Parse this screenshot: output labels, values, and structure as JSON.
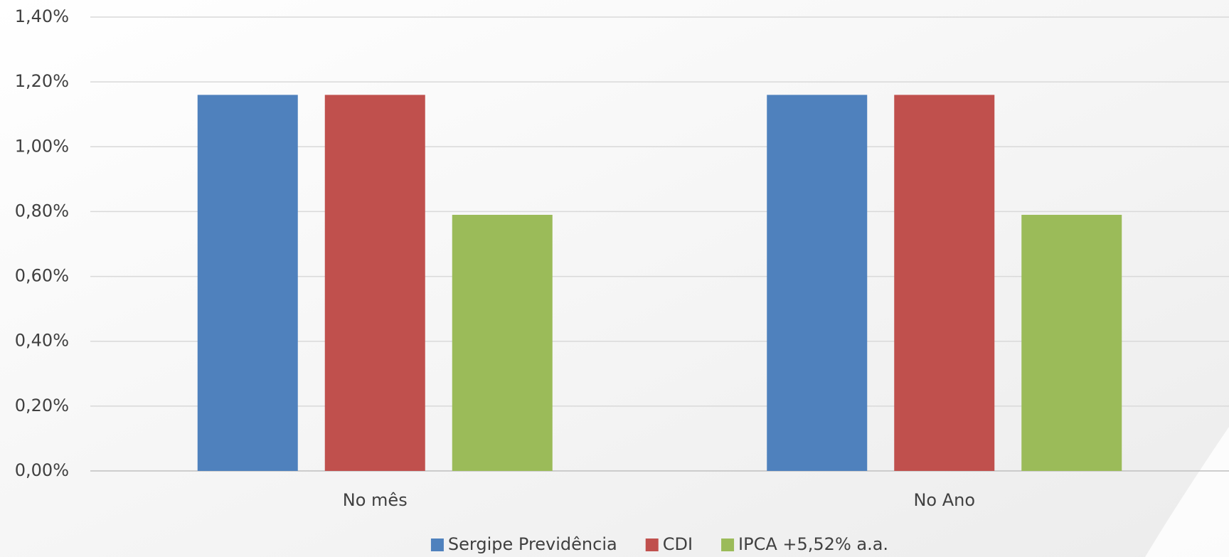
{
  "chart_data": {
    "type": "bar",
    "categories": [
      "No mês",
      "No Ano"
    ],
    "series": [
      {
        "name": "Sergipe Previdência",
        "color": "#4f81bd",
        "values": [
          1.16,
          1.16
        ]
      },
      {
        "name": "CDI",
        "color": "#c0504d",
        "values": [
          1.16,
          1.16
        ]
      },
      {
        "name": "IPCA +5,52% a.a.",
        "color": "#9bbb59",
        "values": [
          0.79,
          0.79
        ]
      }
    ],
    "ylim": [
      0,
      1.4
    ],
    "yticks": [
      {
        "value": 0,
        "label": "0,00%"
      },
      {
        "value": 0.2,
        "label": "0,20%"
      },
      {
        "value": 0.4,
        "label": "0,40%"
      },
      {
        "value": 0.6,
        "label": "0,60%"
      },
      {
        "value": 0.8,
        "label": "0,80%"
      },
      {
        "value": 1.0,
        "label": "1,00%"
      },
      {
        "value": 1.2,
        "label": "1,20%"
      },
      {
        "value": 1.4,
        "label": "1,40%"
      }
    ],
    "grid": true,
    "legend": "bottom"
  }
}
